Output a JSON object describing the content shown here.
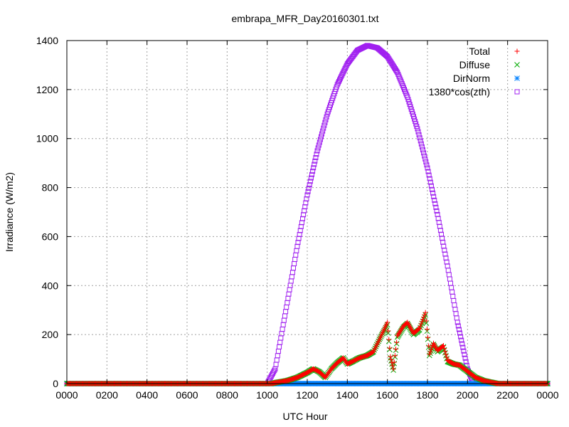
{
  "chart_data": {
    "type": "scatter",
    "title": "embrapa_MFR_Day20160301.txt",
    "xlabel": "UTC Hour",
    "ylabel": "Irradiance (W/m2)",
    "xlim": [
      0,
      24
    ],
    "ylim": [
      0,
      1400
    ],
    "x_ticks": [
      "0000",
      "0200",
      "0400",
      "0600",
      "0800",
      "1000",
      "1200",
      "1400",
      "1600",
      "1800",
      "2000",
      "2200",
      "0000"
    ],
    "y_ticks": [
      "0",
      "200",
      "400",
      "600",
      "800",
      "1000",
      "1200",
      "1400"
    ],
    "grid": true,
    "legend_position": "top-right",
    "series": [
      {
        "name": "Total",
        "color": "#ff0000",
        "marker": "plus",
        "points": [
          [
            0,
            0
          ],
          [
            10.2,
            0
          ],
          [
            10.5,
            5
          ],
          [
            11.0,
            12
          ],
          [
            11.5,
            25
          ],
          [
            12.0,
            45
          ],
          [
            12.3,
            60
          ],
          [
            12.6,
            48
          ],
          [
            12.9,
            25
          ],
          [
            13.2,
            60
          ],
          [
            13.5,
            85
          ],
          [
            13.8,
            105
          ],
          [
            14.0,
            80
          ],
          [
            14.3,
            92
          ],
          [
            14.6,
            105
          ],
          [
            15.0,
            115
          ],
          [
            15.3,
            130
          ],
          [
            15.6,
            180
          ],
          [
            15.8,
            215
          ],
          [
            16.0,
            250
          ],
          [
            16.15,
            110
          ],
          [
            16.3,
            60
          ],
          [
            16.5,
            195
          ],
          [
            16.8,
            235
          ],
          [
            17.0,
            250
          ],
          [
            17.3,
            205
          ],
          [
            17.6,
            225
          ],
          [
            17.9,
            290
          ],
          [
            18.1,
            120
          ],
          [
            18.3,
            165
          ],
          [
            18.5,
            135
          ],
          [
            18.8,
            155
          ],
          [
            19.0,
            95
          ],
          [
            19.3,
            80
          ],
          [
            19.6,
            75
          ],
          [
            20.0,
            50
          ],
          [
            20.4,
            25
          ],
          [
            20.8,
            12
          ],
          [
            21.2,
            5
          ],
          [
            21.5,
            0
          ],
          [
            24,
            0
          ]
        ]
      },
      {
        "name": "Diffuse",
        "color": "#00aa00",
        "marker": "cross",
        "points": [
          [
            0,
            0
          ],
          [
            10.2,
            0
          ],
          [
            10.5,
            5
          ],
          [
            11.0,
            12
          ],
          [
            11.5,
            25
          ],
          [
            12.0,
            45
          ],
          [
            12.3,
            60
          ],
          [
            12.6,
            48
          ],
          [
            12.9,
            25
          ],
          [
            13.2,
            60
          ],
          [
            13.5,
            85
          ],
          [
            13.8,
            105
          ],
          [
            14.0,
            80
          ],
          [
            14.3,
            92
          ],
          [
            14.6,
            105
          ],
          [
            15.0,
            115
          ],
          [
            15.3,
            130
          ],
          [
            15.6,
            180
          ],
          [
            15.8,
            210
          ],
          [
            16.0,
            240
          ],
          [
            16.15,
            105
          ],
          [
            16.3,
            55
          ],
          [
            16.5,
            190
          ],
          [
            16.8,
            230
          ],
          [
            17.0,
            245
          ],
          [
            17.3,
            200
          ],
          [
            17.6,
            220
          ],
          [
            17.9,
            280
          ],
          [
            18.1,
            115
          ],
          [
            18.3,
            160
          ],
          [
            18.5,
            130
          ],
          [
            18.8,
            150
          ],
          [
            19.0,
            90
          ],
          [
            19.3,
            80
          ],
          [
            19.6,
            75
          ],
          [
            20.0,
            50
          ],
          [
            20.4,
            25
          ],
          [
            20.8,
            12
          ],
          [
            21.2,
            5
          ],
          [
            21.5,
            0
          ],
          [
            24,
            0
          ]
        ]
      },
      {
        "name": "DirNorm",
        "color": "#0080ff",
        "marker": "star",
        "points": [
          [
            0,
            0
          ],
          [
            24,
            0
          ]
        ]
      },
      {
        "name": "1380*cos(zth)",
        "color": "#a020f0",
        "marker": "square",
        "points": [
          [
            0,
            0
          ],
          [
            10.0,
            0
          ],
          [
            10.4,
            60
          ],
          [
            11.0,
            330
          ],
          [
            11.5,
            560
          ],
          [
            12.0,
            770
          ],
          [
            12.5,
            950
          ],
          [
            13.0,
            1100
          ],
          [
            13.5,
            1220
          ],
          [
            14.0,
            1305
          ],
          [
            14.5,
            1360
          ],
          [
            15.0,
            1380
          ],
          [
            15.5,
            1370
          ],
          [
            16.0,
            1335
          ],
          [
            16.5,
            1270
          ],
          [
            17.0,
            1170
          ],
          [
            17.5,
            1040
          ],
          [
            18.0,
            880
          ],
          [
            18.5,
            690
          ],
          [
            19.0,
            480
          ],
          [
            19.5,
            250
          ],
          [
            20.0,
            60
          ],
          [
            20.3,
            0
          ],
          [
            24,
            0
          ]
        ]
      }
    ]
  }
}
